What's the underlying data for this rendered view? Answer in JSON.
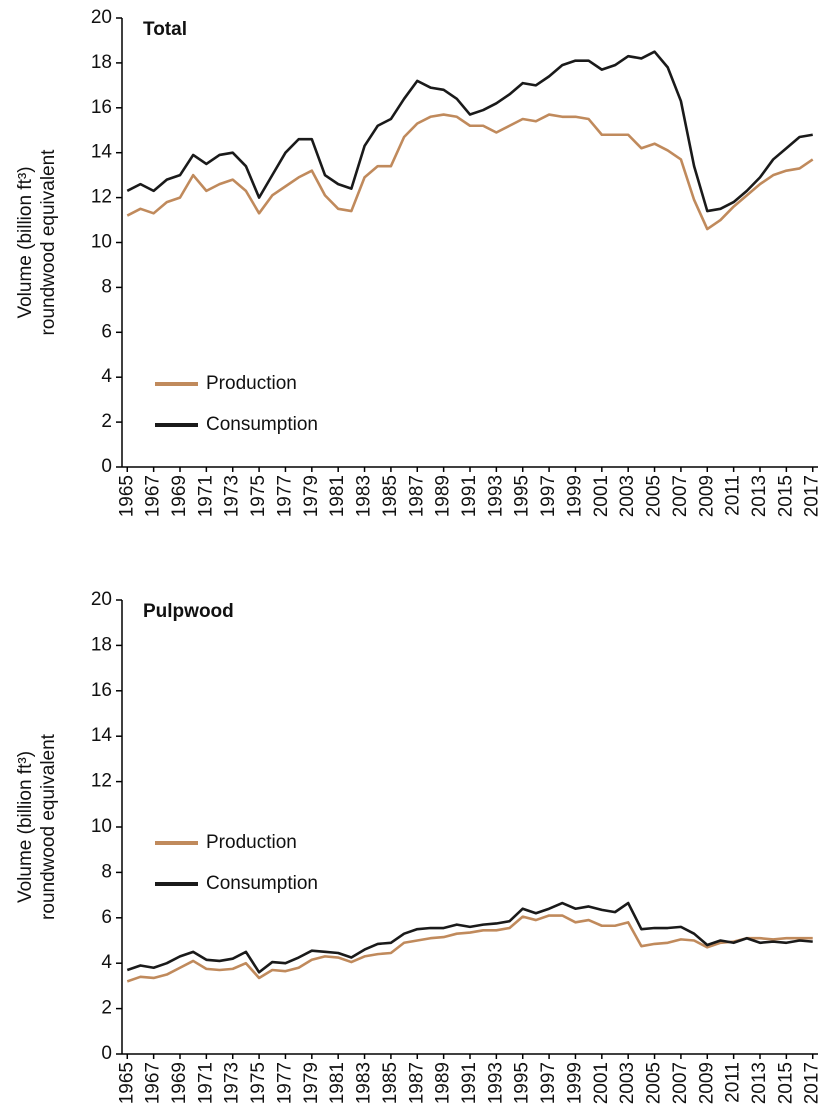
{
  "chart_data": [
    {
      "type": "line",
      "title": "Total",
      "ylabel": [
        "Volume (billion ft³)",
        "roundwood equivalent"
      ],
      "x": [
        1965,
        1966,
        1967,
        1968,
        1969,
        1970,
        1971,
        1972,
        1973,
        1974,
        1975,
        1976,
        1977,
        1978,
        1979,
        1980,
        1981,
        1982,
        1983,
        1984,
        1985,
        1986,
        1987,
        1988,
        1989,
        1990,
        1991,
        1992,
        1993,
        1994,
        1995,
        1996,
        1997,
        1998,
        1999,
        2000,
        2001,
        2002,
        2003,
        2004,
        2005,
        2006,
        2007,
        2008,
        2009,
        2010,
        2011,
        2012,
        2013,
        2014,
        2015,
        2016,
        2017
      ],
      "series": [
        {
          "name": "Production",
          "color": "#c08a5c",
          "values": [
            11.2,
            11.5,
            11.3,
            11.8,
            12.0,
            13.0,
            12.3,
            12.6,
            12.8,
            12.3,
            11.3,
            12.1,
            12.5,
            12.9,
            13.2,
            12.1,
            11.5,
            11.4,
            12.9,
            13.4,
            13.4,
            14.7,
            15.3,
            15.6,
            15.7,
            15.6,
            15.2,
            15.2,
            14.9,
            15.2,
            15.5,
            15.4,
            15.7,
            15.6,
            15.6,
            15.5,
            14.8,
            14.8,
            14.8,
            14.2,
            14.4,
            14.1,
            13.7,
            11.9,
            10.6,
            11.0,
            11.6,
            12.1,
            12.6,
            13.0,
            13.2,
            13.3,
            13.7
          ]
        },
        {
          "name": "Consumption",
          "color": "#1a1a1a",
          "values": [
            12.3,
            12.6,
            12.3,
            12.8,
            13.0,
            13.9,
            13.5,
            13.9,
            14.0,
            13.4,
            12.0,
            13.0,
            14.0,
            14.6,
            14.6,
            13.0,
            12.6,
            12.4,
            14.3,
            15.2,
            15.5,
            16.4,
            17.2,
            16.9,
            16.8,
            16.4,
            15.7,
            15.9,
            16.2,
            16.6,
            17.1,
            17.0,
            17.4,
            17.9,
            18.1,
            18.1,
            17.7,
            17.9,
            18.3,
            18.2,
            18.5,
            17.8,
            16.3,
            13.4,
            11.4,
            11.5,
            11.8,
            12.3,
            12.9,
            13.7,
            14.2,
            14.7,
            14.8
          ]
        }
      ],
      "xlim": [
        1964.6,
        2017.4
      ],
      "xticks": [
        1965,
        1967,
        1969,
        1971,
        1973,
        1975,
        1977,
        1979,
        1981,
        1983,
        1985,
        1987,
        1989,
        1991,
        1993,
        1995,
        1997,
        1999,
        2001,
        2003,
        2005,
        2007,
        2009,
        2011,
        2013,
        2015,
        2017
      ],
      "ylim": [
        0,
        20
      ],
      "yticks": [
        0,
        2,
        4,
        6,
        8,
        10,
        12,
        14,
        16,
        18,
        20
      ],
      "grid": false
    },
    {
      "type": "line",
      "title": "Pulpwood",
      "ylabel": [
        "Volume (billion ft³)",
        "roundwood equivalent"
      ],
      "x": [
        1965,
        1966,
        1967,
        1968,
        1969,
        1970,
        1971,
        1972,
        1973,
        1974,
        1975,
        1976,
        1977,
        1978,
        1979,
        1980,
        1981,
        1982,
        1983,
        1984,
        1985,
        1986,
        1987,
        1988,
        1989,
        1990,
        1991,
        1992,
        1993,
        1994,
        1995,
        1996,
        1997,
        1998,
        1999,
        2000,
        2001,
        2002,
        2003,
        2004,
        2005,
        2006,
        2007,
        2008,
        2009,
        2010,
        2011,
        2012,
        2013,
        2014,
        2015,
        2016,
        2017
      ],
      "series": [
        {
          "name": "Production",
          "color": "#c08a5c",
          "values": [
            3.2,
            3.4,
            3.35,
            3.5,
            3.8,
            4.1,
            3.75,
            3.7,
            3.75,
            4.0,
            3.35,
            3.7,
            3.65,
            3.8,
            4.15,
            4.3,
            4.25,
            4.05,
            4.3,
            4.4,
            4.45,
            4.9,
            5.0,
            5.1,
            5.15,
            5.3,
            5.35,
            5.45,
            5.45,
            5.55,
            6.05,
            5.9,
            6.1,
            6.1,
            5.8,
            5.9,
            5.65,
            5.65,
            5.8,
            4.75,
            4.85,
            4.9,
            5.05,
            5.0,
            4.7,
            4.9,
            4.95,
            5.1,
            5.1,
            5.05,
            5.1,
            5.1,
            5.1
          ]
        },
        {
          "name": "Consumption",
          "color": "#1a1a1a",
          "values": [
            3.7,
            3.9,
            3.8,
            4.0,
            4.3,
            4.5,
            4.15,
            4.1,
            4.2,
            4.5,
            3.6,
            4.05,
            4.0,
            4.25,
            4.55,
            4.5,
            4.45,
            4.25,
            4.6,
            4.85,
            4.9,
            5.3,
            5.5,
            5.55,
            5.55,
            5.7,
            5.6,
            5.7,
            5.75,
            5.85,
            6.4,
            6.2,
            6.4,
            6.65,
            6.4,
            6.5,
            6.35,
            6.25,
            6.65,
            5.5,
            5.55,
            5.55,
            5.6,
            5.3,
            4.8,
            5.0,
            4.9,
            5.1,
            4.9,
            4.95,
            4.9,
            5.0,
            4.95
          ]
        }
      ],
      "xlim": [
        1964.6,
        2017.4
      ],
      "xticks": [
        1965,
        1967,
        1969,
        1971,
        1973,
        1975,
        1977,
        1979,
        1981,
        1983,
        1985,
        1987,
        1989,
        1991,
        1993,
        1995,
        1997,
        1999,
        2001,
        2003,
        2005,
        2007,
        2009,
        2011,
        2013,
        2015,
        2017
      ],
      "ylim": [
        0,
        20
      ],
      "yticks": [
        0,
        2,
        4,
        6,
        8,
        10,
        12,
        14,
        16,
        18,
        20
      ],
      "grid": false
    }
  ]
}
